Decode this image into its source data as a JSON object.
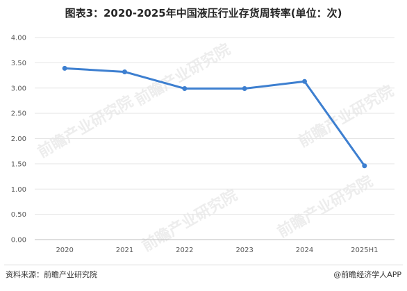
{
  "chart_data": {
    "type": "line",
    "title": "图表3：2020-2025年中国液压行业存货周转率(单位：次)",
    "categories": [
      "2020",
      "2021",
      "2022",
      "2023",
      "2024",
      "2025H1"
    ],
    "series": [
      {
        "values": [
          3.39,
          3.32,
          2.99,
          2.99,
          3.13,
          1.46
        ]
      }
    ],
    "ylim": [
      0,
      4
    ],
    "yticks": [
      "0.00",
      "0.50",
      "1.00",
      "1.50",
      "2.00",
      "2.50",
      "3.00",
      "3.50",
      "4.00"
    ],
    "grid": true,
    "line_color": "#3d7fd0"
  },
  "footer": {
    "source": "资料来源：前瞻产业研究院",
    "brand": "@前瞻经济学人APP"
  },
  "watermark": "前瞻产业研究院"
}
